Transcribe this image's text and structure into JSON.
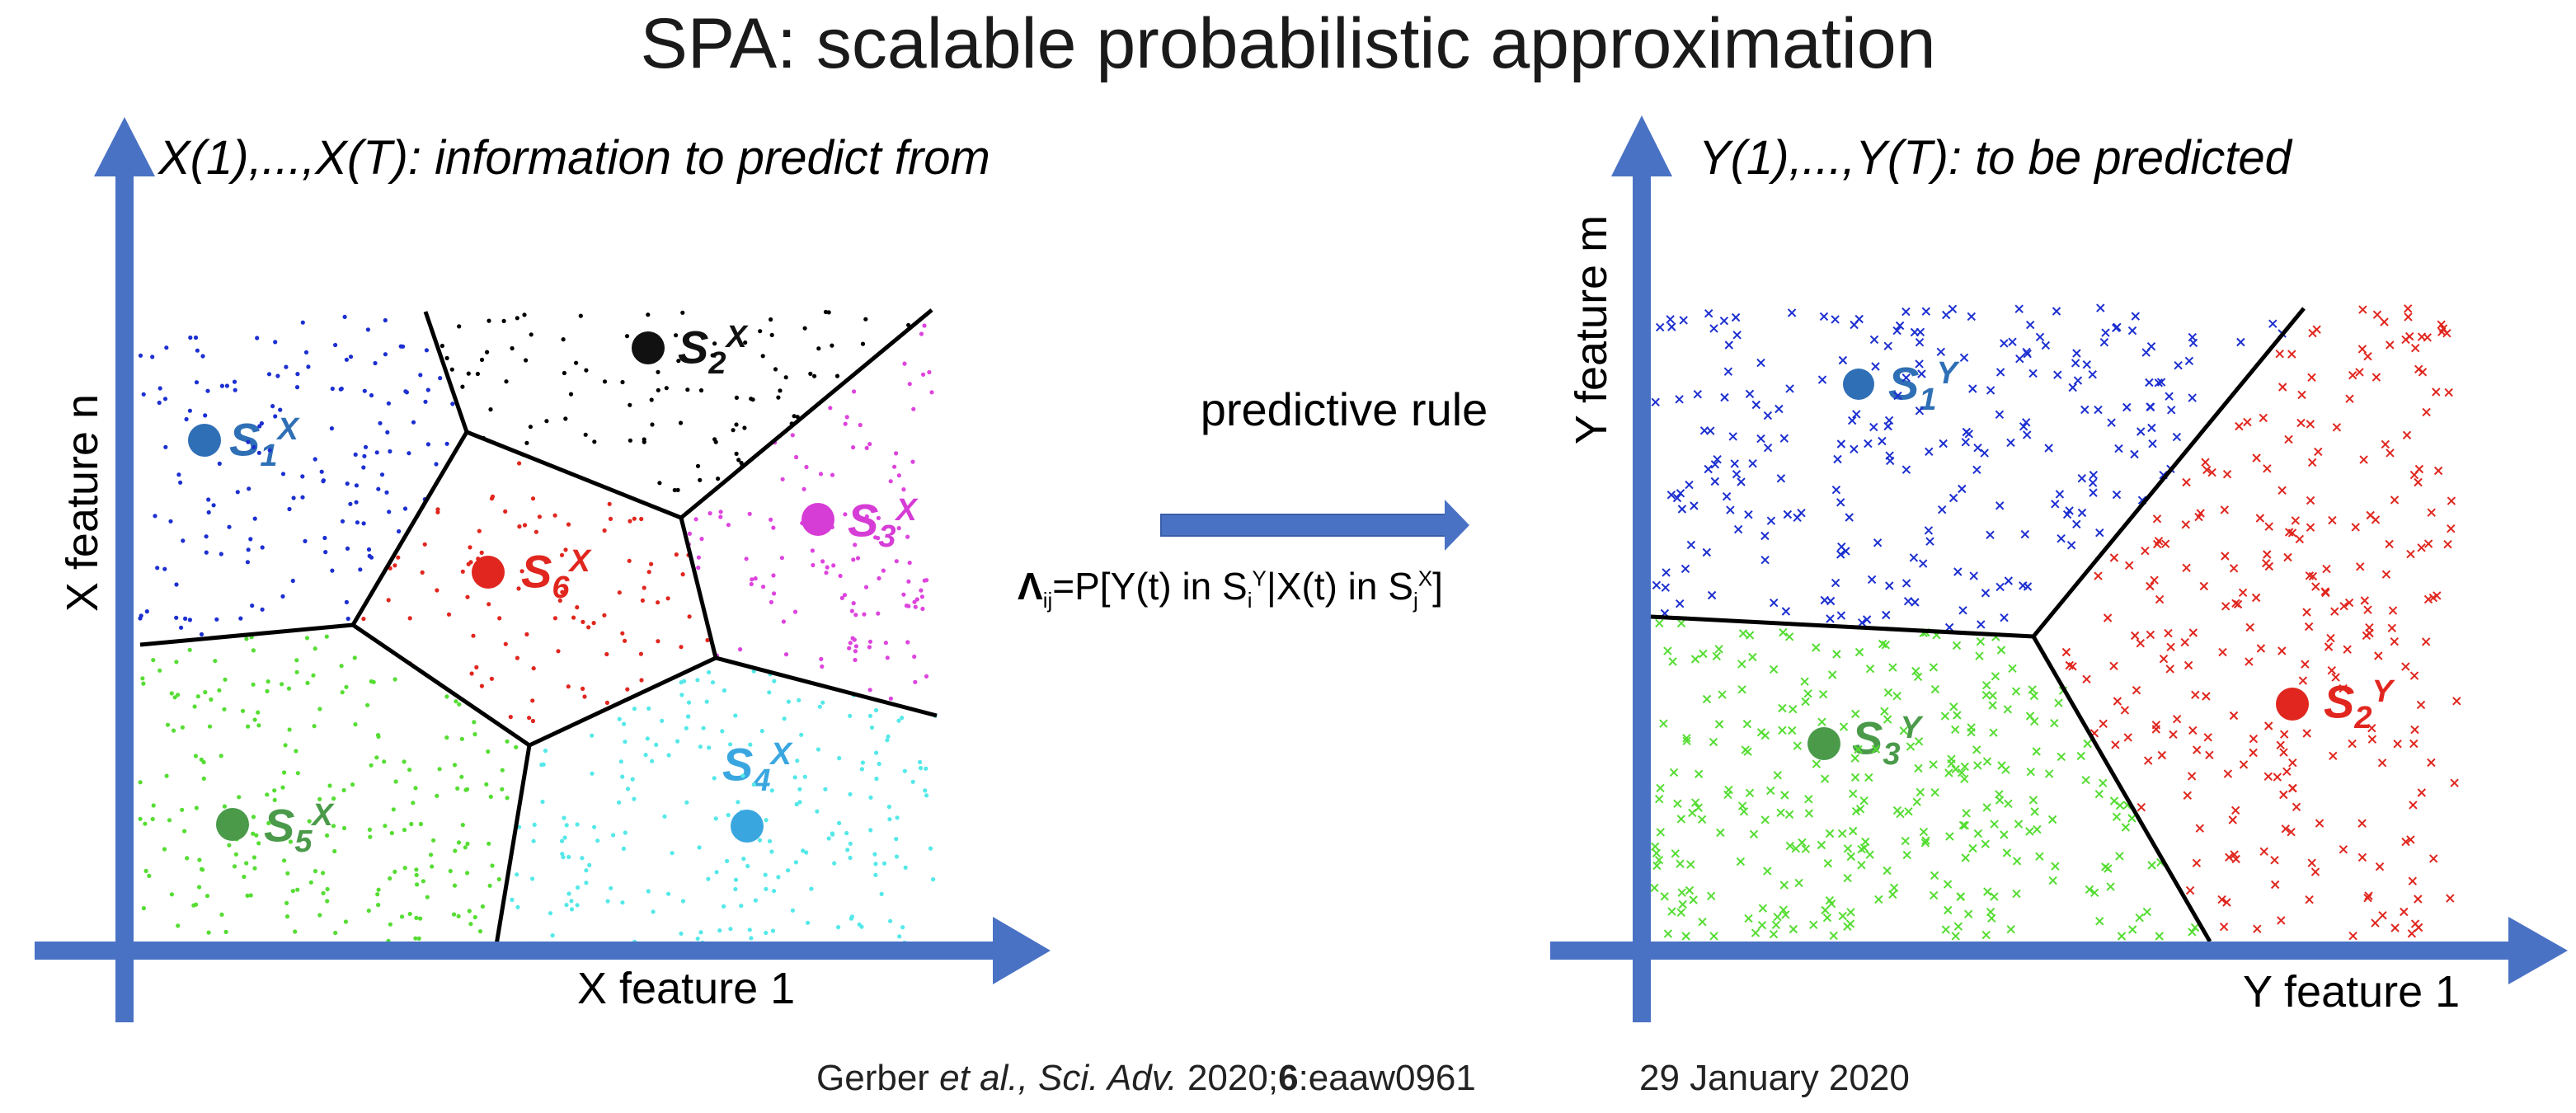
{
  "title": "SPA: scalable probabilistic approximation",
  "left_panel": {
    "subtitle": "X(1),...,X(T):  information to predict from",
    "xlabel": "X feature 1",
    "ylabel": "X feature n",
    "clusters": [
      {
        "base": "S",
        "sub": "1",
        "sup": "X",
        "color": "#2f6fb5"
      },
      {
        "base": "S",
        "sub": "2",
        "sup": "X",
        "color": "#111111"
      },
      {
        "base": "S",
        "sub": "3",
        "sup": "X",
        "color": "#d63cd6"
      },
      {
        "base": "S",
        "sub": "4",
        "sup": "X",
        "color": "#3aa6e0"
      },
      {
        "base": "S",
        "sub": "5",
        "sup": "X",
        "color": "#4a9a4a"
      },
      {
        "base": "S",
        "sub": "6",
        "sup": "X",
        "color": "#e0261e"
      }
    ]
  },
  "right_panel": {
    "subtitle": "Y(1),...,Y(T): to be predicted",
    "xlabel": "Y feature 1",
    "ylabel": "Y feature m",
    "clusters": [
      {
        "base": "S",
        "sub": "1",
        "sup": "Y",
        "color": "#2f6fb5"
      },
      {
        "base": "S",
        "sub": "2",
        "sup": "Y",
        "color": "#e0261e"
      },
      {
        "base": "S",
        "sub": "3",
        "sup": "Y",
        "color": "#4a9a4a"
      }
    ]
  },
  "rule": {
    "text": "predictive rule",
    "lambda": "Λ",
    "lambda_sub": "ij",
    "eq_a": "=P[Y(t) in S",
    "eq_b": "|X(t) in S",
    "eq_c": "]",
    "sub_i": "i",
    "sup_y": "Y",
    "sub_j": "j",
    "sup_x": "X"
  },
  "citation": {
    "author": "Gerber ",
    "etal": "et al., Sci. Adv.",
    "year": " 2020;",
    "volume": "6",
    "article": ":eaaw0961",
    "date": "29 January 2020"
  },
  "colors": {
    "axis": "#4a72c4",
    "blue_points": "#1c2fd0",
    "black_points": "#000000",
    "magenta_points": "#dd44dd",
    "red_points": "#e0261e",
    "green_points": "#55dd33",
    "cyan_points": "#55e8e8"
  }
}
